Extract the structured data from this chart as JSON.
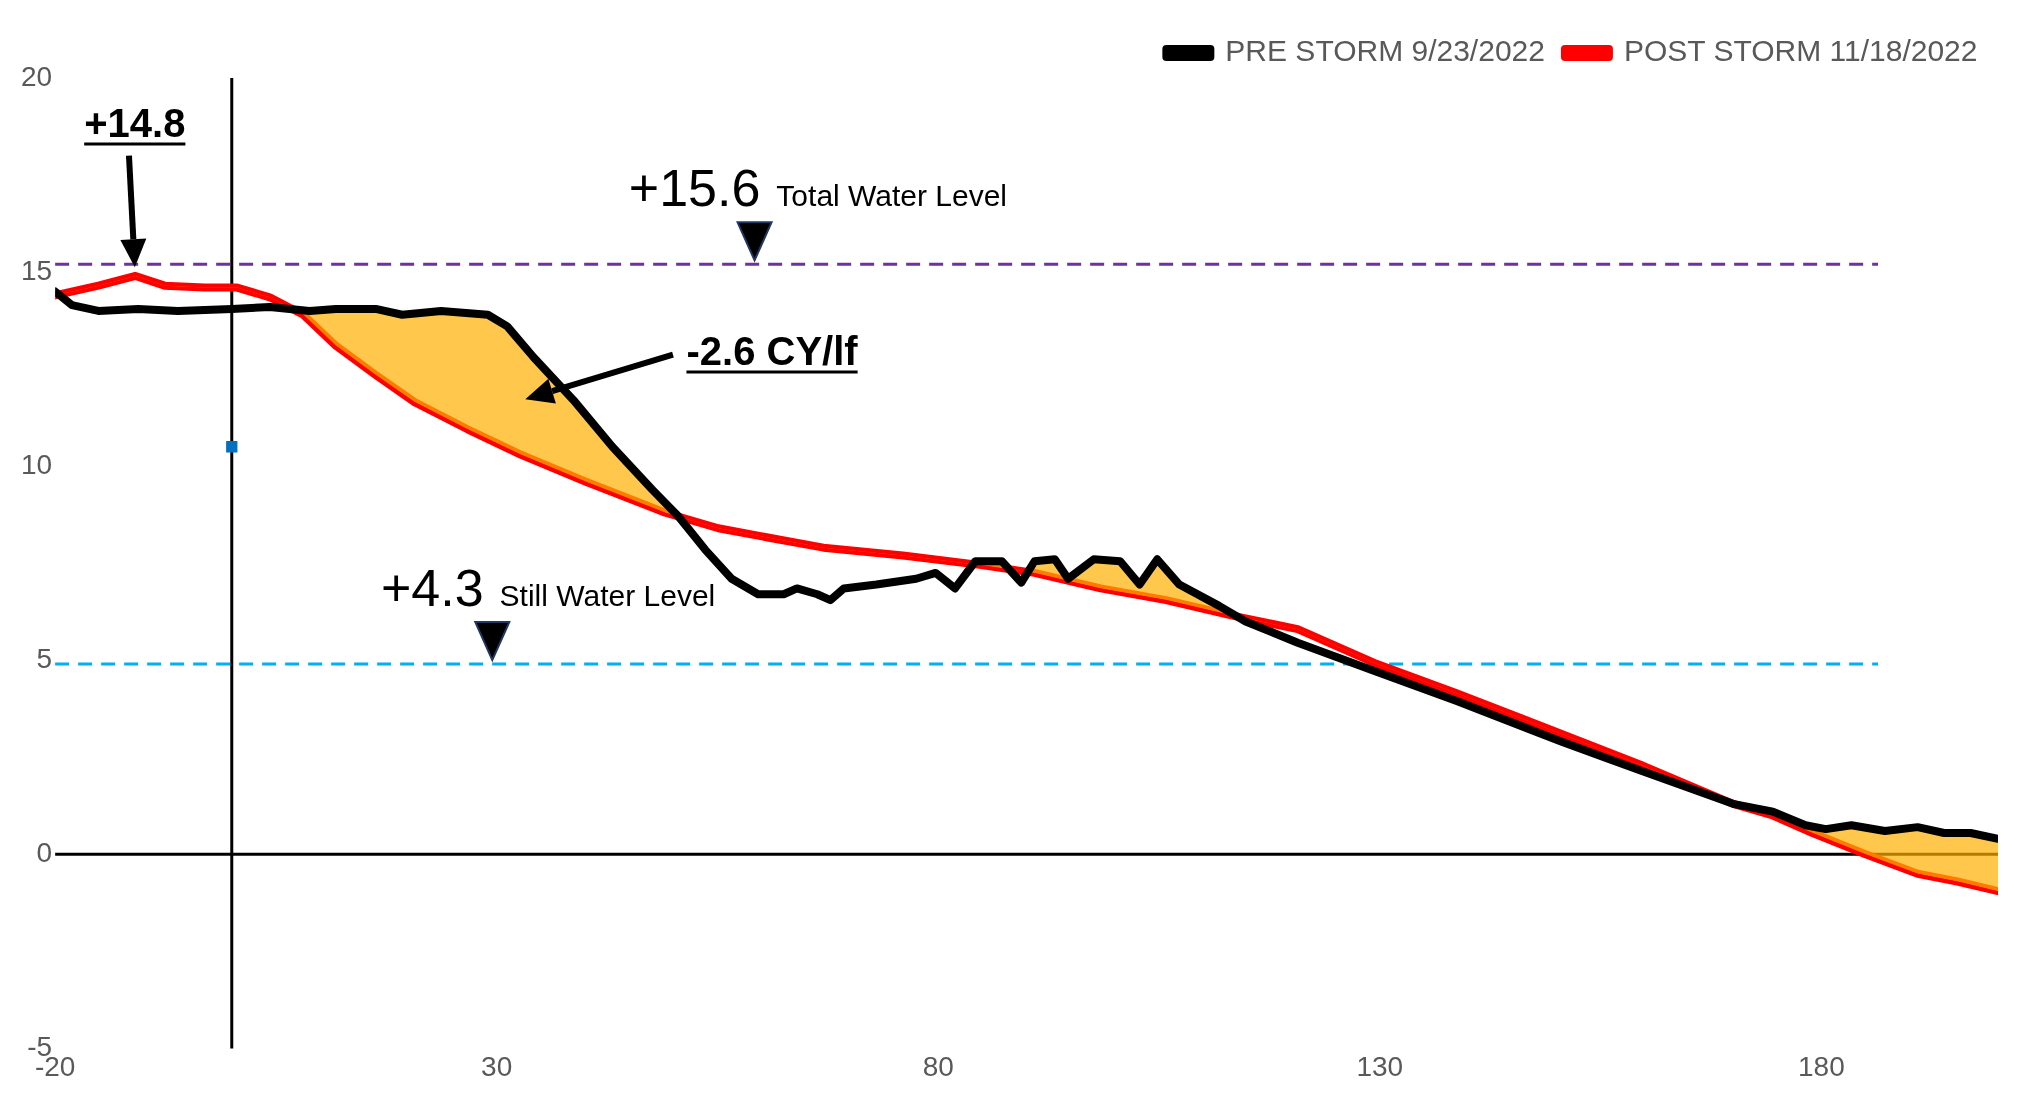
{
  "chart_data": {
    "type": "line",
    "xlim": [
      -20,
      200
    ],
    "xticks": [
      -20,
      30,
      80,
      130,
      180
    ],
    "ylim": [
      -5,
      20
    ],
    "yticks": [
      -5,
      0,
      5,
      10,
      15,
      20
    ],
    "grid": false,
    "legend": "top right",
    "marker": "none",
    "line_style": "solid",
    "series": [
      {
        "name": "PRE STORM 9/23/2022",
        "color": "#000000",
        "x": [
          -20,
          -18.1,
          -15.1,
          -10.6,
          -6.1,
          0,
          4.3,
          8.8,
          11.8,
          16.3,
          19.3,
          23.7,
          29,
          31.2,
          34.2,
          38.7,
          43.1,
          47.6,
          50.6,
          53.6,
          56.6,
          59.6,
          62.5,
          64,
          66.3,
          67.8,
          69.3,
          73,
          77.5,
          79.7,
          81.9,
          84.2,
          87.2,
          89.4,
          90.9,
          93.2,
          94.7,
          97.6,
          100.6,
          102.8,
          104.8,
          107.3,
          111.8,
          114.8,
          120.7,
          129.7,
          138.7,
          150.6,
          159.6,
          170,
          174.5,
          178.2,
          180.5,
          183.4,
          187.2,
          190.9,
          193.9,
          196.9,
          200
        ],
        "values": [
          14.5,
          14.15,
          14.0,
          14.05,
          14.0,
          14.05,
          14.1,
          14.0,
          14.05,
          14.05,
          13.9,
          14.0,
          13.9,
          13.6,
          12.8,
          11.7,
          10.5,
          9.4,
          8.7,
          7.85,
          7.1,
          6.7,
          6.7,
          6.85,
          6.7,
          6.55,
          6.85,
          6.95,
          7.1,
          7.25,
          6.85,
          7.55,
          7.55,
          7.0,
          7.55,
          7.6,
          7.1,
          7.6,
          7.55,
          6.95,
          7.6,
          6.95,
          6.4,
          6.0,
          5.45,
          4.7,
          3.95,
          2.9,
          2.15,
          1.3,
          1.1,
          0.75,
          0.65,
          0.75,
          0.6,
          0.7,
          0.55,
          0.55,
          0.4
        ]
      },
      {
        "name": "POST STORM 11/18/2022",
        "color": "#ff0000",
        "x": [
          -20,
          -15.1,
          -10.9,
          -7.6,
          -3.1,
          0.6,
          4.3,
          8.1,
          11.8,
          16.3,
          20.7,
          26.7,
          32.7,
          40.1,
          49.1,
          55.1,
          61,
          67,
          76,
          84.9,
          90.9,
          98.4,
          105.8,
          113.3,
          120.7,
          129.7,
          138.7,
          150.6,
          159.6,
          170,
          174.5,
          179,
          185,
          190.9,
          195.4,
          200
        ],
        "values": [
          14.4,
          14.65,
          14.9,
          14.65,
          14.6,
          14.6,
          14.35,
          13.9,
          13.1,
          12.35,
          11.65,
          10.95,
          10.3,
          9.6,
          8.8,
          8.4,
          8.15,
          7.9,
          7.7,
          7.45,
          7.25,
          6.85,
          6.55,
          6.15,
          5.8,
          4.9,
          4.15,
          3.1,
          2.3,
          1.3,
          1.0,
          0.55,
          0,
          -0.5,
          -0.7,
          -0.95
        ]
      },
      {
        "type": "scatter",
        "marker": "square",
        "color": "#0070c0",
        "x": [
          0
        ],
        "values": [
          10.5
        ]
      }
    ],
    "ref_lines": [
      {
        "axis": "y",
        "value": 15.2,
        "label": "+15.6 Total Water Level",
        "color": "#7030a0",
        "line_style": "dashed"
      },
      {
        "axis": "y",
        "value": 4.9,
        "label": "+4.3 Still Water Level",
        "color": "#00b0f0",
        "line_style": "dashed"
      }
    ],
    "annotations": [
      "+14.8",
      "-2.6 CY/lf"
    ]
  }
}
